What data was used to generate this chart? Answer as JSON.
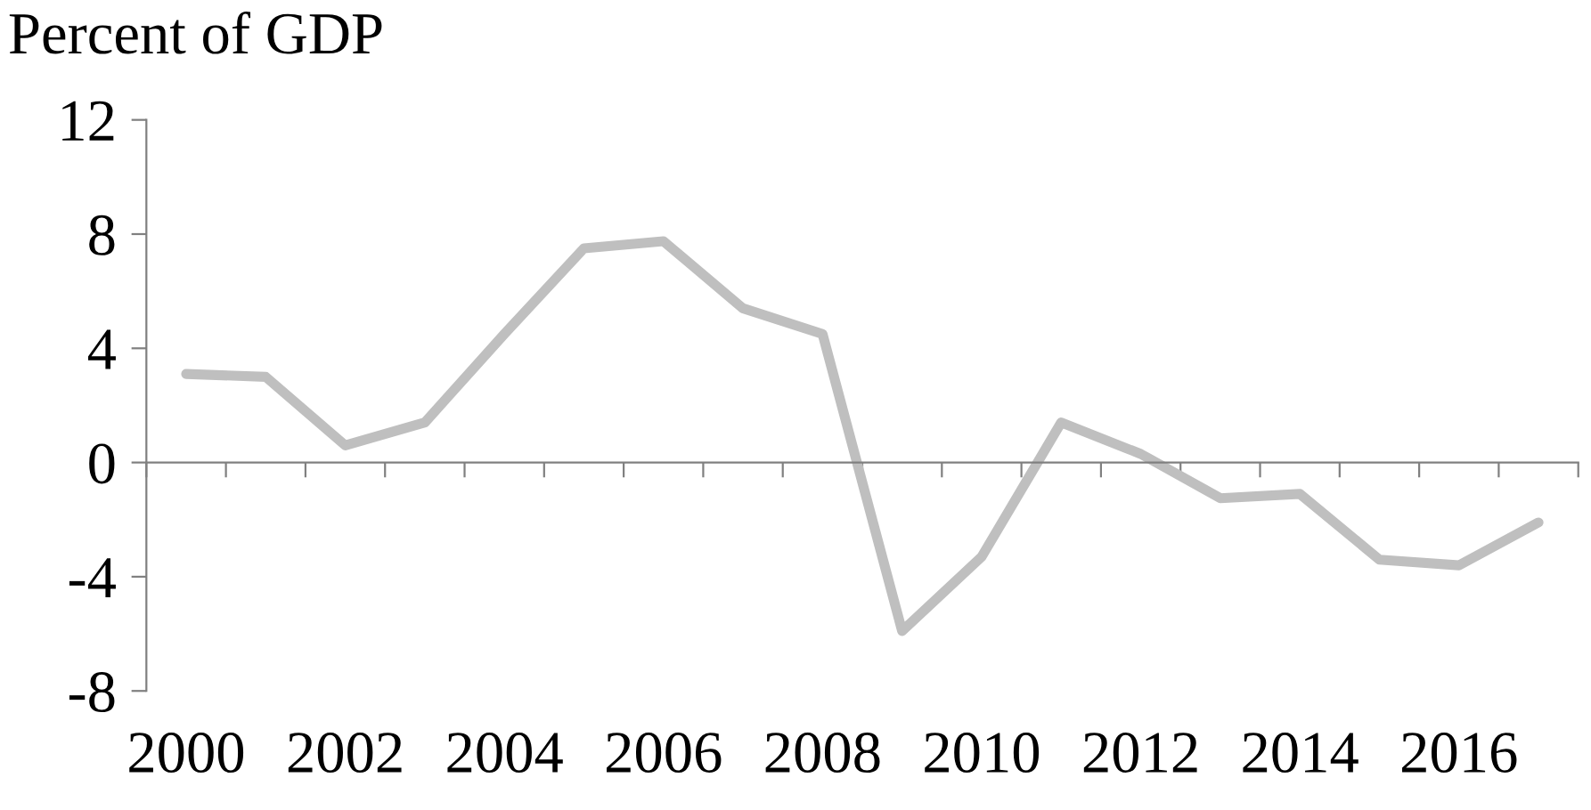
{
  "chart_data": {
    "type": "line",
    "ylabel": "Percent of GDP",
    "categories": [
      "2000",
      null,
      "2002",
      null,
      "2004",
      null,
      "2006",
      null,
      "2008",
      null,
      "2010",
      null,
      "2012",
      null,
      "2014",
      null,
      "2016",
      null
    ],
    "series": [
      {
        "color": "#bfbfbf",
        "values": [
          3.1,
          3.0,
          0.6,
          1.4,
          4.5,
          7.5,
          7.75,
          5.4,
          4.5,
          -5.9,
          -3.3,
          1.4,
          0.3,
          -1.25,
          -1.1,
          -3.4,
          -3.6,
          -2.1
        ]
      }
    ],
    "ylim": [
      -8,
      12
    ],
    "yticks": [
      {
        "value": -8,
        "label": "-8"
      },
      {
        "value": -4,
        "label": "-4"
      },
      0,
      4,
      8,
      12
    ],
    "legend": false
  }
}
